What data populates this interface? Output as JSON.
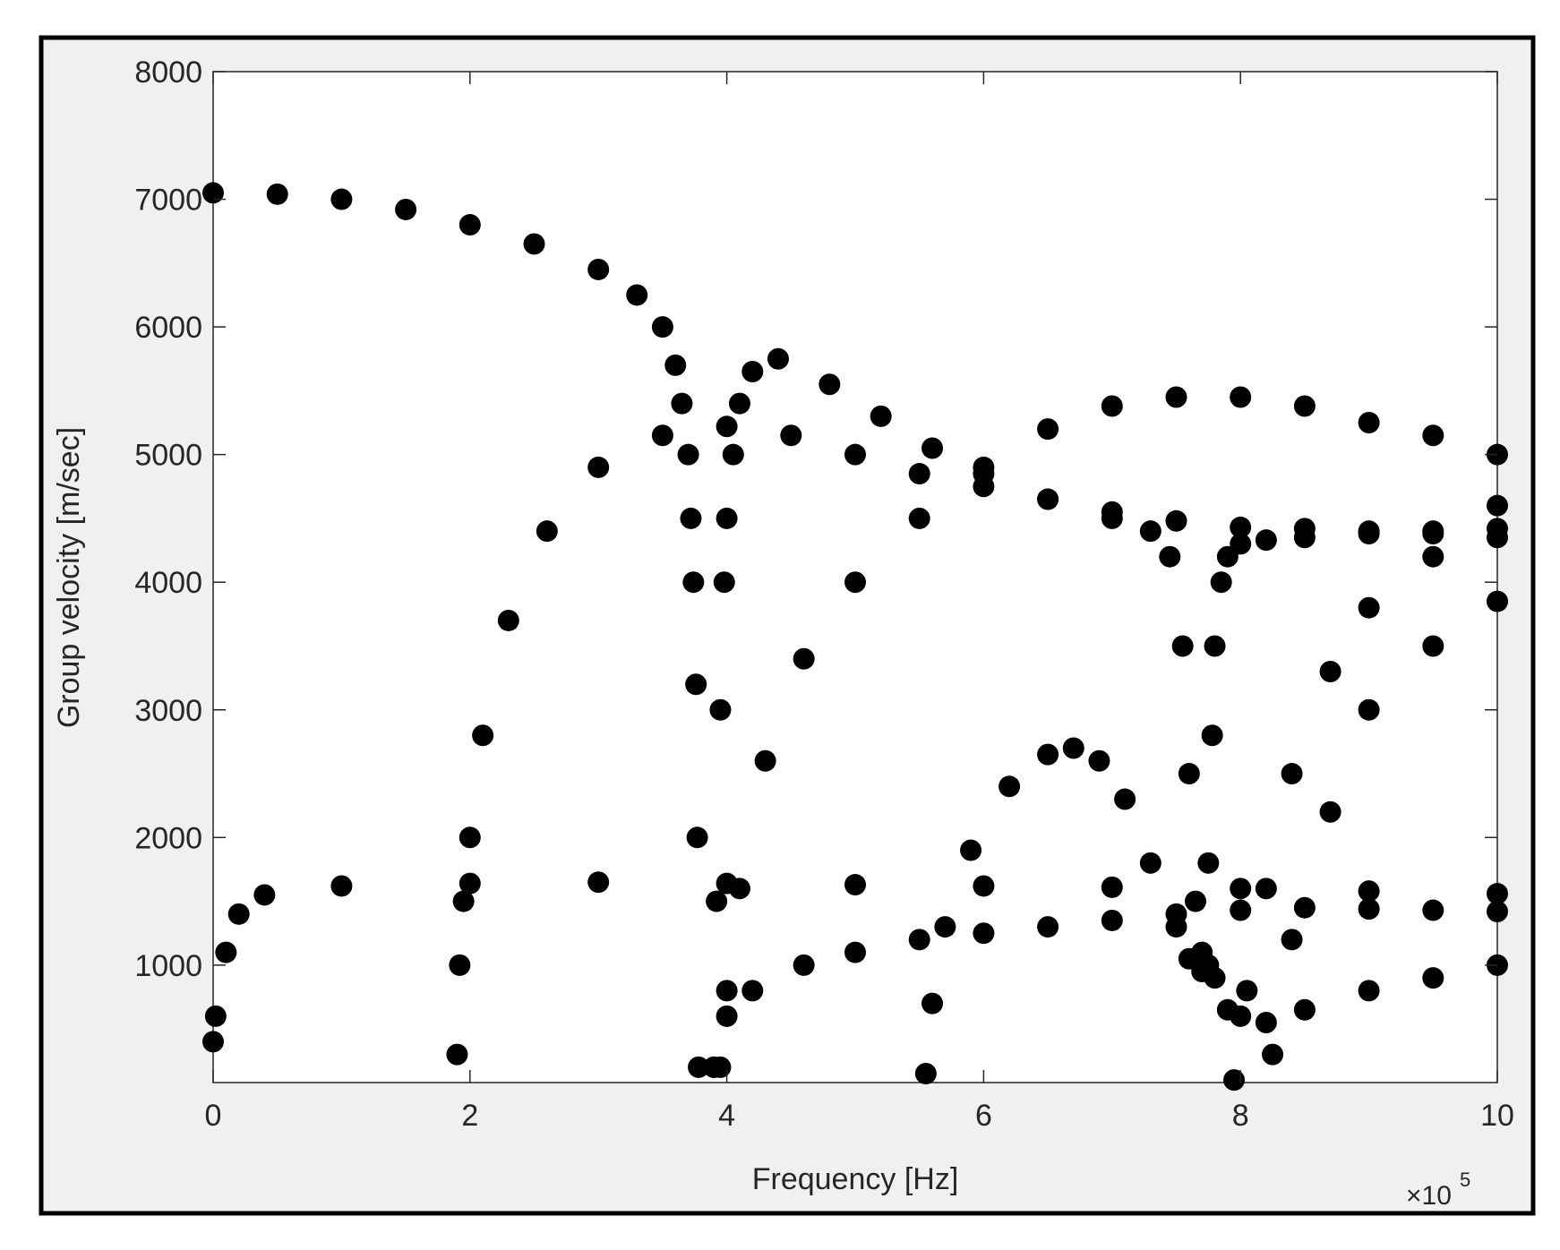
{
  "chart_data": {
    "type": "scatter",
    "x_label": "Frequency [Hz]",
    "y_label": "Group velocity [m/sec]",
    "x_scale_label": "×10",
    "x_scale_exponent": "5",
    "xlim": [
      0,
      10
    ],
    "xticks": [
      0,
      2,
      4,
      6,
      8,
      10
    ],
    "ylim": [
      80,
      8000
    ],
    "yticks": [
      1000,
      2000,
      3000,
      4000,
      5000,
      6000,
      7000,
      8000
    ],
    "grid": false,
    "box": true,
    "series": [
      {
        "color": "#000000",
        "x": [
          0,
          0.5,
          1,
          1.5,
          2,
          2.5,
          3,
          3.3,
          3.5,
          3.6,
          3.65,
          3.7,
          3.72,
          3.74,
          3.76,
          3.77,
          3.78
        ],
        "values": [
          7050,
          7040,
          7000,
          6920,
          6800,
          6650,
          6450,
          6250,
          6000,
          5700,
          5400,
          5000,
          4500,
          4000,
          3200,
          2000,
          200
        ]
      },
      {
        "color": "#000000",
        "x": [
          3.9,
          3.92,
          3.95,
          3.98,
          4.0,
          4.05,
          4.1,
          4.2,
          4.4,
          4.8,
          5.2,
          5.6,
          6,
          6.5,
          7,
          7.3,
          7.45,
          7.55,
          7.6,
          7.65,
          7.7,
          7.75
        ],
        "values": [
          200,
          1500,
          3000,
          4000,
          4500,
          5000,
          5400,
          5650,
          5750,
          5550,
          5300,
          5050,
          4850,
          4650,
          4500,
          4400,
          4200,
          3500,
          2500,
          1500,
          1100,
          1000
        ]
      },
      {
        "color": "#000000",
        "x": [
          1.9,
          1.92,
          1.95,
          2.0,
          2.1,
          2.3,
          2.6,
          3,
          3.5,
          4,
          4.5,
          5,
          5.5,
          6,
          6.5,
          7,
          7.5,
          8,
          8.5,
          9,
          9.5,
          10
        ],
        "values": [
          300,
          1000,
          1500,
          2000,
          2800,
          3700,
          4400,
          4900,
          5150,
          5220,
          5150,
          5000,
          4850,
          4750,
          4650,
          4550,
          4480,
          4430,
          4420,
          4400,
          4380,
          4350
        ]
      },
      {
        "color": "#000000",
        "x": [
          3.9,
          4.0,
          4.2,
          4.6,
          5,
          5.5,
          6,
          6.5,
          7,
          7.5,
          8,
          8.5,
          9,
          9.5,
          10
        ],
        "values": [
          200,
          600,
          800,
          1000,
          1100,
          1200,
          1250,
          1300,
          1350,
          1400,
          1430,
          1450,
          1440,
          1430,
          1420
        ]
      },
      {
        "color": "#000000",
        "x": [
          0,
          0.02,
          0.1,
          0.2,
          0.4,
          1,
          2,
          3,
          4,
          5,
          6,
          7,
          8,
          9,
          10
        ],
        "values": [
          400,
          600,
          1100,
          1400,
          1550,
          1620,
          1640,
          1650,
          1640,
          1630,
          1620,
          1610,
          1600,
          1580,
          1560
        ]
      },
      {
        "color": "#000000",
        "x": [
          3.95,
          4.0,
          4.1,
          4.3,
          4.6,
          5,
          5.5,
          6,
          6.5,
          7,
          7.5,
          8,
          8.5,
          9,
          9.5,
          10
        ],
        "values": [
          200,
          800,
          1600,
          2600,
          3400,
          4000,
          4500,
          4900,
          5200,
          5380,
          5450,
          5450,
          5380,
          5250,
          5150,
          5000
        ]
      },
      {
        "color": "#000000",
        "x": [
          5.55,
          5.6,
          5.7,
          5.9,
          6.2,
          6.5,
          6.7,
          6.9,
          7.1,
          7.3,
          7.5,
          7.6,
          7.7
        ],
        "values": [
          150,
          700,
          1300,
          1900,
          2400,
          2650,
          2700,
          2600,
          2300,
          1800,
          1300,
          1050,
          950
        ]
      },
      {
        "color": "#000000",
        "x": [
          7.75,
          7.78,
          7.8,
          7.85,
          7.9,
          8.0,
          8.2,
          8.5,
          9,
          9.5,
          10
        ],
        "values": [
          1800,
          2800,
          3500,
          4000,
          4200,
          4300,
          4330,
          4350,
          4380,
          4400,
          4420
        ]
      },
      {
        "color": "#000000",
        "x": [
          7.95,
          8.05,
          8.2,
          8.4,
          8.7,
          9,
          9.5,
          10
        ],
        "values": [
          100,
          800,
          1600,
          2500,
          3300,
          3800,
          4200,
          4600
        ]
      },
      {
        "color": "#000000",
        "x": [
          8.25,
          8.4,
          8.7,
          9,
          9.5,
          10
        ],
        "values": [
          300,
          1200,
          2200,
          3000,
          3500,
          3850
        ]
      },
      {
        "color": "#000000",
        "x": [
          7.8,
          7.9,
          8.0,
          8.2,
          8.5,
          9,
          9.5,
          10
        ],
        "values": [
          900,
          650,
          600,
          550,
          650,
          800,
          900,
          1000
        ]
      }
    ]
  }
}
